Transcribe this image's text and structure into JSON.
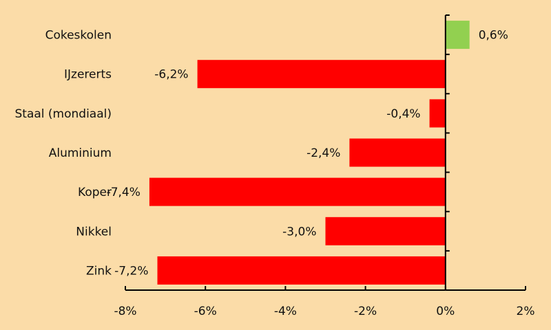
{
  "colors": {
    "background": "#fbdca8",
    "positive": "#92d050",
    "negative": "#ff0000",
    "axis": "#000000"
  },
  "chart_data": {
    "type": "bar",
    "orientation": "horizontal",
    "categories": [
      "Cokeskolen",
      "IJzererts",
      "Staal (mondiaal)",
      "Aluminium",
      "Koper",
      "Nikkel",
      "Zink"
    ],
    "values": [
      0.6,
      -6.2,
      -0.4,
      -2.4,
      -7.4,
      -3.0,
      -7.2
    ],
    "data_labels": [
      "0,6%",
      "-6,2%",
      "-0,4%",
      "-2,4%",
      "-7,4%",
      "-3,0%",
      "-7,2%"
    ],
    "xlim": [
      -8,
      2
    ],
    "xticks": [
      -8,
      -6,
      -4,
      -2,
      0,
      2
    ],
    "xtick_labels": [
      "-8%",
      "-6%",
      "-4%",
      "-2%",
      "0%",
      "2%"
    ],
    "grid": false,
    "legend": "none",
    "title": "",
    "xlabel": "",
    "ylabel": ""
  }
}
